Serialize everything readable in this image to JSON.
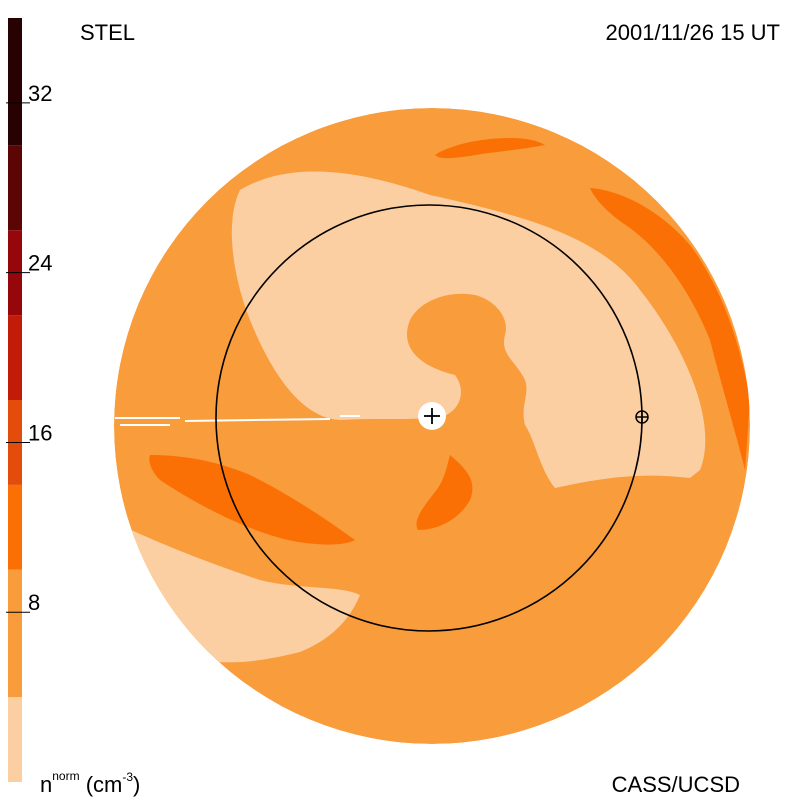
{
  "header": {
    "source": "STEL",
    "datetime": "2001/11/26 15 UT"
  },
  "footer": {
    "quantity": "n",
    "quantity_sup": "norm",
    "unit_pre": " (cm",
    "unit_sup": "-3",
    "unit_post": ")",
    "credit": "CASS/UCSD"
  },
  "colors": {
    "band_0": "#fbcfa1",
    "band_1": "#f99c3b",
    "band_2": "#fb7005",
    "band_3": "#e34c0a",
    "band_4": "#c21c09",
    "band_5": "#95070a",
    "band_6": "#5c0505",
    "band_7": "#280202"
  },
  "chart_data": {
    "type": "heatmap",
    "colorbar": {
      "range": [
        0,
        36
      ],
      "bands": [
        {
          "from": 0,
          "to": 4,
          "color": "#fbcfa1"
        },
        {
          "from": 4,
          "to": 10,
          "color": "#f99c3b"
        },
        {
          "from": 10,
          "to": 14,
          "color": "#fb7005"
        },
        {
          "from": 14,
          "to": 18,
          "color": "#e34c0a"
        },
        {
          "from": 18,
          "to": 22,
          "color": "#c21c09"
        },
        {
          "from": 22,
          "to": 26,
          "color": "#95070a"
        },
        {
          "from": 26,
          "to": 30,
          "color": "#5c0505"
        },
        {
          "from": 30,
          "to": 36,
          "color": "#280202"
        }
      ],
      "ticks": [
        {
          "value": 8,
          "label": "8"
        },
        {
          "value": 16,
          "label": "16"
        },
        {
          "value": 24,
          "label": "24"
        },
        {
          "value": 32,
          "label": "32"
        }
      ]
    },
    "markers": [
      {
        "name": "Sun",
        "symbol": "+"
      },
      {
        "name": "Earth",
        "symbol": "circled-plus"
      }
    ],
    "reference_circle": "Earth orbit (1 AU)"
  }
}
